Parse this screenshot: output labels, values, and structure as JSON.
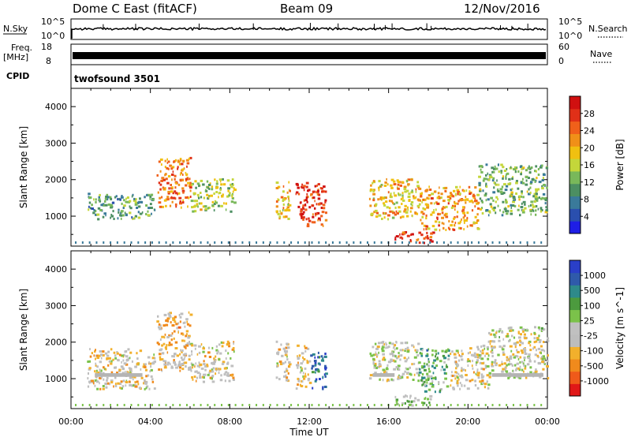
{
  "header": {
    "station": "Dome C East (fitACF)",
    "beam": "Beam 09",
    "date": "12/Nov/2016"
  },
  "strips": {
    "nsky_label": "N.Sky",
    "nsky_top": "10^5",
    "nsky_bottom": "10^0",
    "nsearch_label": "N.Search",
    "freq_label": "Freq.",
    "freq_unit": "[MHz]",
    "freq_top": "18",
    "freq_bottom": "8",
    "nave_label": "Nave",
    "nave_top": "60",
    "nave_bottom": "0",
    "cpid_label": "CPID",
    "cpid_value": "twofsound 3501"
  },
  "time_axis": {
    "label": "Time UT",
    "ticks": [
      "00:00",
      "04:00",
      "08:00",
      "12:00",
      "16:00",
      "20:00",
      "00:00"
    ]
  },
  "colors": {
    "power": [
      "#1e1ee6",
      "#2a4fae",
      "#3a7a9a",
      "#4c8f62",
      "#79b85a",
      "#c4d63a",
      "#f0c010",
      "#f09018",
      "#f0601a",
      "#e03018",
      "#d01010"
    ],
    "velocity": [
      "#e01818",
      "#ef5a1a",
      "#f08a1c",
      "#f2b02c",
      "#bdbdbd",
      "#c0c0c0",
      "#7bc24a",
      "#4c9a3e",
      "#2e8a8a",
      "#2f5aaa",
      "#2a3fc8"
    ],
    "ground_scatter": "#b4b4b4"
  },
  "chart_data": [
    {
      "type": "heatmap",
      "title": "Power",
      "ylabel": "Slant Range [km]",
      "xlabel": "",
      "x_ticks": [
        "00:00",
        "04:00",
        "08:00",
        "12:00",
        "16:00",
        "20:00",
        "00:00"
      ],
      "y_ticks": [
        1000,
        2000,
        3000,
        4000
      ],
      "ylim": [
        180,
        4500
      ],
      "colorbar": {
        "label": "Power [dB]",
        "ticks": [
          "4",
          "8",
          "12",
          "16",
          "20",
          "24",
          "28"
        ],
        "range": [
          0,
          30
        ]
      },
      "echo_regions": [
        {
          "t_start": 0.8,
          "t_end": 4.2,
          "r_min": 900,
          "r_max": 1600,
          "value": 10
        },
        {
          "t_start": 4.3,
          "t_end": 6.0,
          "r_min": 1200,
          "r_max": 2600,
          "value": 22
        },
        {
          "t_start": 6.0,
          "t_end": 8.2,
          "r_min": 1100,
          "r_max": 2000,
          "value": 14
        },
        {
          "t_start": 10.3,
          "t_end": 11.0,
          "r_min": 900,
          "r_max": 2000,
          "value": 18
        },
        {
          "t_start": 11.3,
          "t_end": 12.8,
          "r_min": 700,
          "r_max": 1900,
          "value": 26
        },
        {
          "t_start": 15.0,
          "t_end": 17.5,
          "r_min": 900,
          "r_max": 2000,
          "value": 18
        },
        {
          "t_start": 16.3,
          "t_end": 18.2,
          "r_min": 250,
          "r_max": 550,
          "value": 26
        },
        {
          "t_start": 17.5,
          "t_end": 20.5,
          "r_min": 600,
          "r_max": 1800,
          "value": 20
        },
        {
          "t_start": 20.5,
          "t_end": 24.0,
          "r_min": 1000,
          "r_max": 2400,
          "value": 12
        }
      ]
    },
    {
      "type": "heatmap",
      "title": "Velocity",
      "ylabel": "Slant Range [km]",
      "xlabel": "Time UT",
      "x_ticks": [
        "00:00",
        "04:00",
        "08:00",
        "12:00",
        "16:00",
        "20:00",
        "00:00"
      ],
      "y_ticks": [
        1000,
        2000,
        3000,
        4000
      ],
      "ylim": [
        180,
        4500
      ],
      "colorbar": {
        "label": "Velocity [m s^-1]",
        "ticks": [
          "1000",
          "500",
          "100",
          "25",
          "-25",
          "-100",
          "-500",
          "-1000"
        ],
        "range": [
          -1000,
          1000
        ]
      },
      "echo_regions": [
        {
          "t_start": 0.8,
          "t_end": 4.2,
          "r_min": 700,
          "r_max": 1800,
          "value": -200
        },
        {
          "t_start": 4.3,
          "t_end": 6.0,
          "r_min": 1200,
          "r_max": 2800,
          "value": -300
        },
        {
          "t_start": 6.0,
          "t_end": 8.2,
          "r_min": 900,
          "r_max": 2000,
          "value": -150
        },
        {
          "t_start": 10.3,
          "t_end": 11.0,
          "r_min": 900,
          "r_max": 2000,
          "value": -250
        },
        {
          "t_start": 11.3,
          "t_end": 12.0,
          "r_min": 700,
          "r_max": 1900,
          "value": -200
        },
        {
          "t_start": 12.0,
          "t_end": 12.8,
          "r_min": 700,
          "r_max": 1700,
          "value": 600
        },
        {
          "t_start": 15.0,
          "t_end": 17.5,
          "r_min": 900,
          "r_max": 2000,
          "value": -80
        },
        {
          "t_start": 16.3,
          "t_end": 18.2,
          "r_min": 250,
          "r_max": 550,
          "value": 60
        },
        {
          "t_start": 17.5,
          "t_end": 19.0,
          "r_min": 600,
          "r_max": 1800,
          "value": 300
        },
        {
          "t_start": 19.0,
          "t_end": 21.0,
          "r_min": 700,
          "r_max": 1900,
          "value": -150
        },
        {
          "t_start": 21.0,
          "t_end": 24.0,
          "r_min": 1000,
          "r_max": 2400,
          "value": -60
        }
      ],
      "ground_scatter_band_km": [
        1050,
        1150
      ]
    }
  ]
}
